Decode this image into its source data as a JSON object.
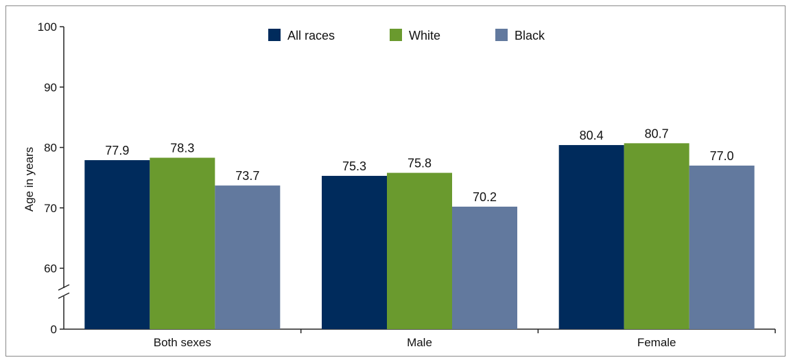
{
  "chart_data": {
    "type": "bar",
    "title": "",
    "xlabel": "",
    "ylabel": "Age in years",
    "categories": [
      "Both sexes",
      "Male",
      "Female"
    ],
    "series": [
      {
        "name": "All races",
        "values": [
          77.9,
          75.3,
          80.4
        ],
        "labels": [
          "77.9",
          "75.3",
          "80.4"
        ],
        "color": "#002b5c"
      },
      {
        "name": "White",
        "values": [
          78.3,
          75.8,
          80.7
        ],
        "labels": [
          "78.3",
          "75.8",
          "80.7"
        ],
        "color": "#6a9a2e"
      },
      {
        "name": "Black",
        "values": [
          73.7,
          70.2,
          77.0
        ],
        "labels": [
          "73.7",
          "70.2",
          "77.0"
        ],
        "color": "#62799e"
      }
    ],
    "yticks": [
      0,
      60,
      70,
      80,
      90,
      100
    ],
    "ylim": [
      0,
      100
    ],
    "axis_break": {
      "between": [
        0,
        60
      ]
    },
    "grid": false,
    "legend_position": "top-center"
  }
}
